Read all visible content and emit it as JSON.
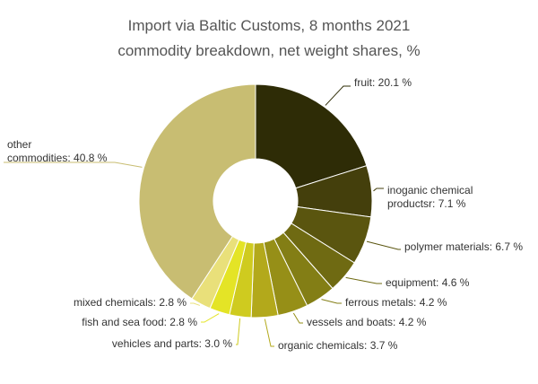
{
  "chart_data": {
    "type": "pie",
    "title": [
      "Import via Baltic Customs, 8 months 2021",
      "commodity breakdown, net weight shares, %"
    ],
    "donut": true,
    "slices": [
      {
        "label": "fruit: 20.1 %",
        "value": 20.1,
        "color": "#2e2c06"
      },
      {
        "label": "inoganic chemical productsr: 7.1 %",
        "label_lines": [
          "inoganic chemical",
          "productsr: 7.1 %"
        ],
        "value": 7.1,
        "color": "#443f0c"
      },
      {
        "label": "polymer materials: 6.7 %",
        "value": 6.7,
        "color": "#5a550f"
      },
      {
        "label": "equipment: 4.6 %",
        "value": 4.6,
        "color": "#6f6a12"
      },
      {
        "label": "ferrous metals: 4.2 %",
        "value": 4.2,
        "color": "#837e15"
      },
      {
        "label": "vessels and boats: 4.2 %",
        "value": 4.2,
        "color": "#968f17"
      },
      {
        "label": "organic chemicals: 3.7 %",
        "value": 3.7,
        "color": "#b3a91b"
      },
      {
        "label": "vehicles and parts: 3.0 %",
        "value": 3.0,
        "color": "#cfcb1f"
      },
      {
        "label": "fish and sea food: 2.8 %",
        "value": 2.8,
        "color": "#e4e426"
      },
      {
        "label": "mixed chemicals: 2.8 %",
        "value": 2.8,
        "color": "#e9e07a"
      },
      {
        "label": "other commodities: 40.8 %",
        "label_lines": [
          "other",
          "commodities: 40.8 %"
        ],
        "value": 40.8,
        "color": "#c8bd72"
      }
    ]
  }
}
